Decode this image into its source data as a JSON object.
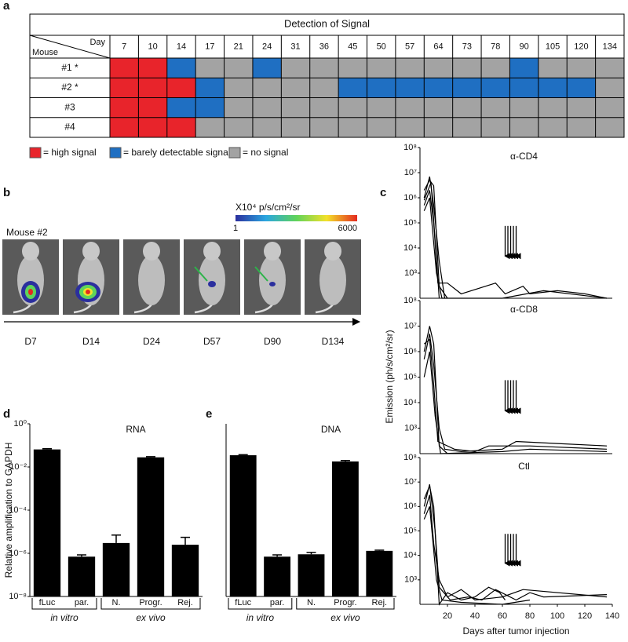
{
  "panel_labels": [
    "a",
    "b",
    "c",
    "d",
    "e"
  ],
  "table": {
    "title": "Detection of Signal",
    "day_label": "Day",
    "mouse_label": "Mouse",
    "days": [
      7,
      10,
      14,
      17,
      21,
      24,
      31,
      36,
      45,
      50,
      57,
      64,
      73,
      78,
      90,
      105,
      120,
      134
    ],
    "legend": [
      {
        "label": "= high signal",
        "color": "#e8242b"
      },
      {
        "label": "= barely detectable signal",
        "color": "#1f6fc2"
      },
      {
        "label": "= no signal",
        "color": "#a3a3a3"
      }
    ],
    "rows": [
      {
        "label": "#1 *",
        "cells": [
          0,
          0,
          1,
          2,
          2,
          1,
          2,
          2,
          2,
          2,
          2,
          2,
          2,
          2,
          1,
          2,
          2,
          2
        ]
      },
      {
        "label": "#2 *",
        "cells": [
          0,
          0,
          0,
          1,
          2,
          2,
          2,
          2,
          1,
          1,
          1,
          1,
          1,
          1,
          1,
          1,
          1,
          2
        ]
      },
      {
        "label": "#3",
        "cells": [
          0,
          0,
          1,
          1,
          2,
          2,
          2,
          2,
          2,
          2,
          2,
          2,
          2,
          2,
          2,
          2,
          2,
          2
        ]
      },
      {
        "label": "#4",
        "cells": [
          0,
          0,
          0,
          2,
          2,
          2,
          2,
          2,
          2,
          2,
          2,
          2,
          2,
          2,
          2,
          2,
          2,
          2
        ]
      }
    ]
  },
  "imaging": {
    "mouse": "Mouse #2",
    "colorbar_label": "X10⁴ p/s/cm²/sr",
    "colorbar_min": 1,
    "colorbar_max": 6000,
    "days": [
      "D7",
      "D14",
      "D24",
      "D57",
      "D90",
      "D134"
    ]
  },
  "chart_data": [
    {
      "type": "line",
      "title": "α-CD4",
      "xlim": [
        0,
        140
      ],
      "ylim": [
        100,
        100000000
      ],
      "log_y": true,
      "color": "#000000",
      "yticks": [
        {
          "value": 1000,
          "label": "10³"
        },
        {
          "value": 10000,
          "label": "10⁴"
        },
        {
          "value": 100000,
          "label": "10⁵"
        },
        {
          "value": 1000000,
          "label": "10⁶"
        },
        {
          "value": 10000000,
          "label": "10⁷"
        },
        {
          "value": 100000000,
          "label": "10⁸"
        }
      ],
      "arrow_days": [
        62,
        64,
        66,
        68,
        70
      ],
      "series": [
        {
          "x": [
            3,
            7,
            10,
            14,
            20
          ],
          "values": [
            2000000,
            5000000,
            3000000,
            300,
            100
          ]
        },
        {
          "x": [
            3,
            7,
            10,
            14,
            18
          ],
          "values": [
            1000000,
            7000000,
            500000,
            3000,
            100
          ]
        },
        {
          "x": [
            3,
            7,
            10,
            13,
            20,
            30,
            55,
            62,
            75,
            80,
            100,
            120,
            136
          ],
          "values": [
            500000,
            2000000,
            100000,
            400,
            400,
            150,
            400,
            150,
            300,
            150,
            200,
            150,
            100
          ]
        },
        {
          "x": [
            3,
            7,
            12,
            16,
            60,
            90,
            136
          ],
          "values": [
            300000,
            1000000,
            1000,
            100,
            100,
            200,
            100
          ]
        },
        {
          "x": [
            3,
            8,
            11,
            14
          ],
          "values": [
            800000,
            4000000,
            20000,
            100
          ]
        }
      ]
    },
    {
      "type": "line",
      "title": "α-CD8",
      "ylabel": "Emission (ph/s/cm²/sr)",
      "xlim": [
        0,
        140
      ],
      "ylim": [
        100,
        100000000
      ],
      "log_y": true,
      "color": "#000000",
      "yticks": [
        {
          "value": 1000,
          "label": "10³"
        },
        {
          "value": 10000,
          "label": "10⁴"
        },
        {
          "value": 100000,
          "label": "10⁵"
        },
        {
          "value": 1000000,
          "label": "10⁶"
        },
        {
          "value": 10000000,
          "label": "10⁷"
        },
        {
          "value": 100000000,
          "label": "10⁸"
        }
      ],
      "arrow_days": [
        62,
        64,
        66,
        68,
        70
      ],
      "series": [
        {
          "x": [
            3,
            7,
            10,
            14,
            20
          ],
          "values": [
            1000000,
            10000000,
            2000000,
            200,
            100
          ]
        },
        {
          "x": [
            3,
            7,
            10,
            14,
            18,
            30,
            60,
            70,
            100,
            136
          ],
          "values": [
            500000,
            5000000,
            300000,
            1000,
            150,
            120,
            150,
            300,
            250,
            200
          ]
        },
        {
          "x": [
            3,
            7,
            10,
            13,
            25,
            40,
            50,
            80,
            136
          ],
          "values": [
            2000000,
            3000000,
            50000,
            300,
            150,
            120,
            200,
            200,
            150
          ]
        },
        {
          "x": [
            3,
            7,
            11,
            15,
            60,
            80,
            136
          ],
          "values": [
            100000,
            1000000,
            3000,
            100,
            120,
            150,
            120
          ]
        }
      ]
    },
    {
      "type": "line",
      "title": "Ctl",
      "xlabel": "Days after tumor injection",
      "xlim": [
        0,
        140
      ],
      "ylim": [
        100,
        100000000
      ],
      "log_y": true,
      "color": "#000000",
      "xticks": [
        20,
        40,
        60,
        80,
        100,
        120,
        140
      ],
      "yticks": [
        {
          "value": 1000,
          "label": "10³"
        },
        {
          "value": 10000,
          "label": "10⁴"
        },
        {
          "value": 100000,
          "label": "10⁵"
        },
        {
          "value": 1000000,
          "label": "10⁶"
        },
        {
          "value": 10000000,
          "label": "10⁷"
        },
        {
          "value": 100000000,
          "label": "10⁸"
        }
      ],
      "arrow_days": [
        62,
        64,
        66,
        68,
        70
      ],
      "series": [
        {
          "x": [
            3,
            7,
            10,
            14,
            20,
            30,
            40,
            50,
            58,
            62
          ],
          "values": [
            2000000,
            7000000,
            1000000,
            100,
            300,
            150,
            200,
            500,
            300,
            150
          ]
        },
        {
          "x": [
            3,
            7,
            11,
            14,
            22,
            35,
            45,
            55,
            70,
            80,
            90,
            136
          ],
          "values": [
            1000000,
            8000000,
            100000,
            500,
            150,
            200,
            150,
            400,
            150,
            300,
            200,
            250
          ]
        },
        {
          "x": [
            3,
            7,
            10,
            14,
            20,
            30,
            40,
            60,
            75,
            136
          ],
          "values": [
            500000,
            3000000,
            30000,
            1000,
            200,
            400,
            150,
            200,
            400,
            200
          ]
        },
        {
          "x": [
            3,
            7,
            12,
            16,
            30,
            60,
            80
          ],
          "values": [
            300000,
            1000000,
            1000,
            150,
            120,
            100,
            150
          ]
        }
      ]
    },
    {
      "type": "bar",
      "title": "RNA",
      "ylabel": "Relative amplification to GAPDH",
      "ylim": [
        1e-08,
        1
      ],
      "log_y": true,
      "color": "#000000",
      "yticks": [
        {
          "value": 1,
          "label": "10⁰"
        },
        {
          "value": 0.01,
          "label": "10⁻²"
        },
        {
          "value": 0.0001,
          "label": "10⁻⁴"
        },
        {
          "value": 1e-06,
          "label": "10⁻⁶"
        },
        {
          "value": 1e-08,
          "label": "10⁻⁸"
        }
      ],
      "categories": [
        "fLuc",
        "par.",
        "N.",
        "Progr.",
        "Rej."
      ],
      "groups": [
        {
          "label": "in vitro",
          "size": 2
        },
        {
          "label": "ex vivo",
          "size": 3
        }
      ],
      "values": [
        0.065,
        7e-07,
        3e-06,
        0.028,
        2.5e-06
      ],
      "errors": [
        0.005,
        1.5e-07,
        4e-06,
        0.002,
        3e-06
      ]
    },
    {
      "type": "bar",
      "title": "DNA",
      "ylim": [
        1e-08,
        1
      ],
      "log_y": true,
      "color": "#000000",
      "categories": [
        "fLuc",
        "par.",
        "N.",
        "Progr.",
        "Rej."
      ],
      "groups": [
        {
          "label": "in vitro",
          "size": 2
        },
        {
          "label": "ex vivo",
          "size": 3
        }
      ],
      "values": [
        0.035,
        7e-07,
        9e-07,
        0.018,
        1.3e-06
      ],
      "errors": [
        0.002,
        1.5e-07,
        2e-07,
        0.002,
        1e-07
      ]
    }
  ]
}
